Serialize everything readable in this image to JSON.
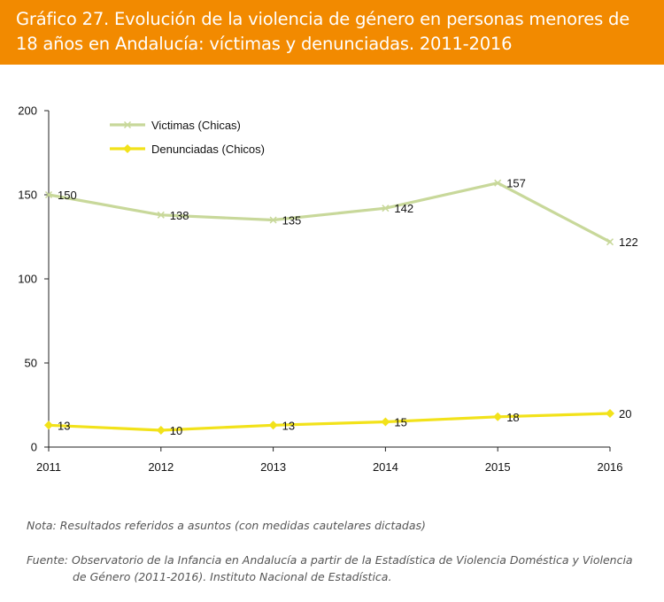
{
  "header": {
    "title": "Gráfico 27. Evolución de la violencia de género en personas menores de 18 años en Andalucía: víctimas y denunciadas. 2011-2016"
  },
  "chart_data": {
    "type": "line",
    "title": "Gráfico 27. Evolución de la violencia de género en personas menores de 18 años en Andalucía: víctimas y denunciadas. 2011-2016",
    "xlabel": "",
    "ylabel": "",
    "categories": [
      "2011",
      "2012",
      "2013",
      "2014",
      "2015",
      "2016"
    ],
    "yticks": [
      "0",
      "50",
      "100",
      "150",
      "200"
    ],
    "ylim": [
      0,
      200
    ],
    "legend_position": "top-left",
    "grid": false,
    "series": [
      {
        "name": "Victimas (Chicas)",
        "color": "#c8d89a",
        "marker": "x",
        "values": [
          150,
          138,
          135,
          142,
          157,
          122
        ],
        "labels": [
          "150",
          "138",
          "135",
          "142",
          "157",
          "122"
        ]
      },
      {
        "name": "Denunciadas (Chicos)",
        "color": "#f2e21a",
        "marker": "diamond",
        "values": [
          13,
          10,
          13,
          15,
          18,
          20
        ],
        "labels": [
          "13",
          "10",
          "13",
          "15",
          "18",
          "20"
        ]
      }
    ]
  },
  "notes": {
    "nota": "Nota: Resultados referidos a asuntos (con medidas cautelares dictadas)",
    "fuente": "Fuente: Observatorio de la Infancia en Andalucía a partir de la Estadística de Violencia Doméstica y Violencia de Género (2011-2016). Instituto Nacional de Estadística."
  }
}
